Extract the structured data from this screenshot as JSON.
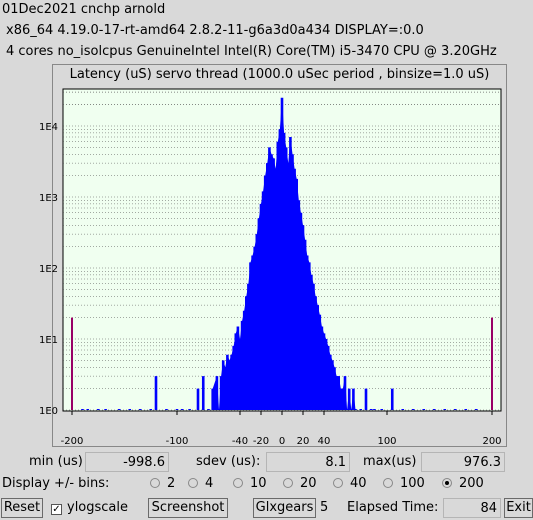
{
  "header": {
    "line1": "01Dec2021 cnchp arnold",
    "line2": "x86_64  4.19.0-17-rt-amd64  2.8.2-11-g6a3d0a434  DISPLAY=:0.0",
    "line3": "4 cores  no_isolcpus   GenuineIntel  Intel(R) Core(TM) i5-3470 CPU @ 3.20GHz"
  },
  "chart_data": {
    "type": "bar",
    "title": "Latency (uS) servo thread (1000.0 uSec period , binsize=1.0 uS)",
    "xlim": [
      -200,
      200
    ],
    "ylim": [
      1,
      30000
    ],
    "yscale": "log",
    "grid": true,
    "x_ticks": [
      "-200",
      "-100",
      "-40",
      "-20",
      "0",
      "20",
      "40",
      "100",
      "200"
    ],
    "y_ticks": [
      "1E0",
      "1E1",
      "1E2",
      "1E3",
      "1E4"
    ],
    "x": [
      -200,
      -190,
      -185,
      -175,
      -168,
      -155,
      -145,
      -135,
      -125,
      -120,
      -110,
      -100,
      -95,
      -88,
      -80,
      -75,
      -70,
      -66,
      -62,
      -60,
      -58,
      -56,
      -54,
      -52,
      -50,
      -48,
      -46,
      -44,
      -42,
      -40,
      -38,
      -36,
      -34,
      -32,
      -30,
      -28,
      -26,
      -24,
      -22,
      -20,
      -18,
      -16,
      -14,
      -12,
      -10,
      -8,
      -6,
      -4,
      -2,
      0,
      2,
      4,
      6,
      8,
      10,
      12,
      14,
      16,
      18,
      20,
      22,
      24,
      26,
      28,
      30,
      32,
      34,
      36,
      38,
      40,
      42,
      44,
      46,
      48,
      50,
      52,
      54,
      56,
      58,
      60,
      62,
      64,
      66,
      68,
      70,
      75,
      80,
      85,
      88,
      95,
      105,
      115,
      125,
      135,
      145,
      155,
      165,
      175,
      185,
      200
    ],
    "values": [
      20,
      1,
      1,
      1,
      1,
      1,
      1,
      1,
      1,
      3,
      1,
      1,
      1,
      1,
      2,
      3,
      1,
      2,
      3,
      1,
      3,
      5,
      4,
      6,
      5,
      6,
      8,
      12,
      15,
      10,
      18,
      25,
      40,
      60,
      120,
      150,
      200,
      300,
      500,
      800,
      1200,
      2000,
      3000,
      5000,
      4000,
      3500,
      2500,
      6000,
      9000,
      25000,
      8000,
      5000,
      3000,
      7000,
      4000,
      2500,
      1800,
      900,
      600,
      400,
      250,
      150,
      120,
      80,
      60,
      40,
      30,
      22,
      15,
      12,
      10,
      8,
      6,
      5,
      4,
      3,
      3,
      2,
      2,
      3,
      1,
      2,
      1,
      2,
      1,
      1,
      2,
      1,
      1,
      1,
      2,
      1,
      1,
      1,
      1,
      1,
      1,
      1,
      1,
      20
    ]
  },
  "stats": {
    "min_label": "min (us)",
    "min_value": "-998.6",
    "sdev_label": "sdev (us):",
    "sdev_value": "8.1",
    "max_label": "max(us)",
    "max_value": "976.3"
  },
  "bins": {
    "label": "Display +/- bins:",
    "options": [
      "2",
      "4",
      "10",
      "20",
      "40",
      "100",
      "200"
    ],
    "selected": "200"
  },
  "toolbar": {
    "reset": "Reset",
    "ylogscale": "ylogscale",
    "ylogscale_checked": "✓",
    "screenshot": "Screenshot",
    "glxgears": "Glxgears",
    "glxgears_count": "5",
    "elapsed_label": "Elapsed Time:",
    "elapsed_value": "84",
    "exit": "Exit"
  },
  "colors": {
    "plot_bg": "#f0fff0",
    "bar": "#0000ff",
    "edge_marker": "#ff0000"
  }
}
